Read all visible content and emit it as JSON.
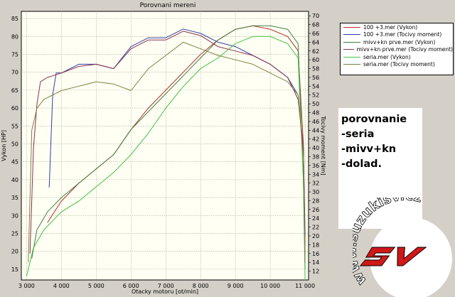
{
  "chart_data": {
    "type": "line",
    "title": "Porovnani mereni",
    "xlabel": "Otacky motoru [ot/min]",
    "ylabel_left": "Vykon [HP]",
    "ylabel_right": "Tocivy moment [Nm]",
    "xlim": [
      2850,
      11100
    ],
    "ylim_left": [
      12,
      87
    ],
    "ylim_right": [
      10,
      71
    ],
    "x_ticks": [
      3000,
      4000,
      5000,
      6000,
      7000,
      8000,
      9000,
      10000,
      11000
    ],
    "x_tick_labels": [
      "3 000",
      "4 000",
      "5 000",
      "6 000",
      "7 000",
      "8 000",
      "9 000",
      "10 000",
      "11 000"
    ],
    "y_left_ticks": [
      15,
      20,
      25,
      30,
      35,
      40,
      45,
      50,
      55,
      60,
      65,
      70,
      75,
      80,
      85
    ],
    "y_right_ticks": [
      12,
      14,
      16,
      18,
      20,
      22,
      24,
      26,
      28,
      30,
      32,
      34,
      36,
      38,
      40,
      42,
      44,
      46,
      48,
      50,
      52,
      54,
      56,
      58,
      60,
      62,
      64,
      66,
      68,
      70
    ],
    "grid": true,
    "series": [
      {
        "name": "100 +3.mer  (Vykon)",
        "axis": "left",
        "color": "#b03030",
        "x": [
          3600,
          3800,
          4000,
          4500,
          5000,
          5500,
          6000,
          6500,
          7000,
          7500,
          8000,
          8500,
          9000,
          9500,
          10000,
          10500,
          10800,
          10950,
          11000
        ],
        "y": [
          28,
          31,
          34,
          39,
          43,
          47,
          54,
          60,
          65,
          70,
          75,
          79,
          82,
          83,
          82,
          80,
          76,
          50,
          22
        ]
      },
      {
        "name": "100 +3.mer  (Tocivy moment)",
        "axis": "right",
        "color": "#3040a0",
        "x": [
          3650,
          3750,
          3850,
          4000,
          4500,
          5000,
          5500,
          6000,
          6500,
          7000,
          7500,
          8000,
          8500,
          9000,
          9500,
          10000,
          10500,
          10800,
          10950,
          11000
        ],
        "y": [
          31,
          52,
          57,
          57,
          59,
          59,
          58,
          63,
          65,
          65,
          67,
          66,
          64,
          63,
          61,
          59,
          56,
          52,
          40,
          20
        ]
      },
      {
        "name": "mivv+kn prve.mer  (Vykon)",
        "axis": "left",
        "color": "#408040",
        "x": [
          3150,
          3300,
          3600,
          4000,
          4500,
          5000,
          5500,
          6000,
          6500,
          7000,
          7500,
          8000,
          8500,
          9000,
          9500,
          10000,
          10500,
          10800,
          10950,
          11000
        ],
        "y": [
          18,
          26,
          31,
          35,
          39,
          43,
          47,
          54,
          59,
          64,
          69,
          74,
          79,
          82,
          83,
          83,
          82,
          78,
          40,
          15
        ]
      },
      {
        "name": "mivv+kn prve.mer  (Tocivy moment)",
        "axis": "right",
        "color": "#8a3050",
        "x": [
          3100,
          3200,
          3300,
          3400,
          3600,
          4000,
          4500,
          5000,
          5500,
          6000,
          6500,
          7000,
          7500,
          8000,
          8500,
          9000,
          9500,
          10000,
          10500,
          10800,
          10950,
          11000
        ],
        "y": [
          16,
          40,
          50,
          55,
          56,
          57,
          58.5,
          59,
          58,
          62.5,
          64.5,
          64.5,
          66.5,
          65.5,
          63,
          62,
          61,
          59,
          56,
          51,
          40,
          16
        ]
      },
      {
        "name": "seria.mer  (Vykon)",
        "axis": "left",
        "color": "#40c040",
        "x": [
          3000,
          3200,
          3500,
          4000,
          4500,
          5000,
          5500,
          6000,
          6500,
          7000,
          7500,
          8000,
          8500,
          9000,
          9500,
          10000,
          10500,
          10800,
          10950,
          11000
        ],
        "y": [
          13,
          21,
          26,
          31,
          34,
          38,
          42,
          47,
          53,
          60,
          66,
          71,
          74,
          78,
          80,
          80,
          78,
          74,
          40,
          12
        ]
      },
      {
        "name": "seria.mer  (Tocivy moment)",
        "axis": "right",
        "color": "#808040",
        "x": [
          3050,
          3150,
          3300,
          3500,
          4000,
          4500,
          5000,
          5500,
          6000,
          6500,
          7000,
          7500,
          8000,
          8500,
          9000,
          9500,
          10000,
          10500,
          10800,
          10950,
          11000
        ],
        "y": [
          14,
          44,
          49,
          51,
          53,
          54,
          55,
          54.5,
          53,
          58,
          61,
          64,
          62.5,
          61,
          60,
          59,
          57,
          55,
          52,
          38,
          14
        ]
      }
    ]
  },
  "notes": [
    "porovnanie",
    "-seria",
    "-mivv+kn",
    "-dolad."
  ],
  "logo": {
    "ring_text": "www.suzukisv.cz",
    "mark": "SV",
    "mark_color": "#d01818"
  }
}
